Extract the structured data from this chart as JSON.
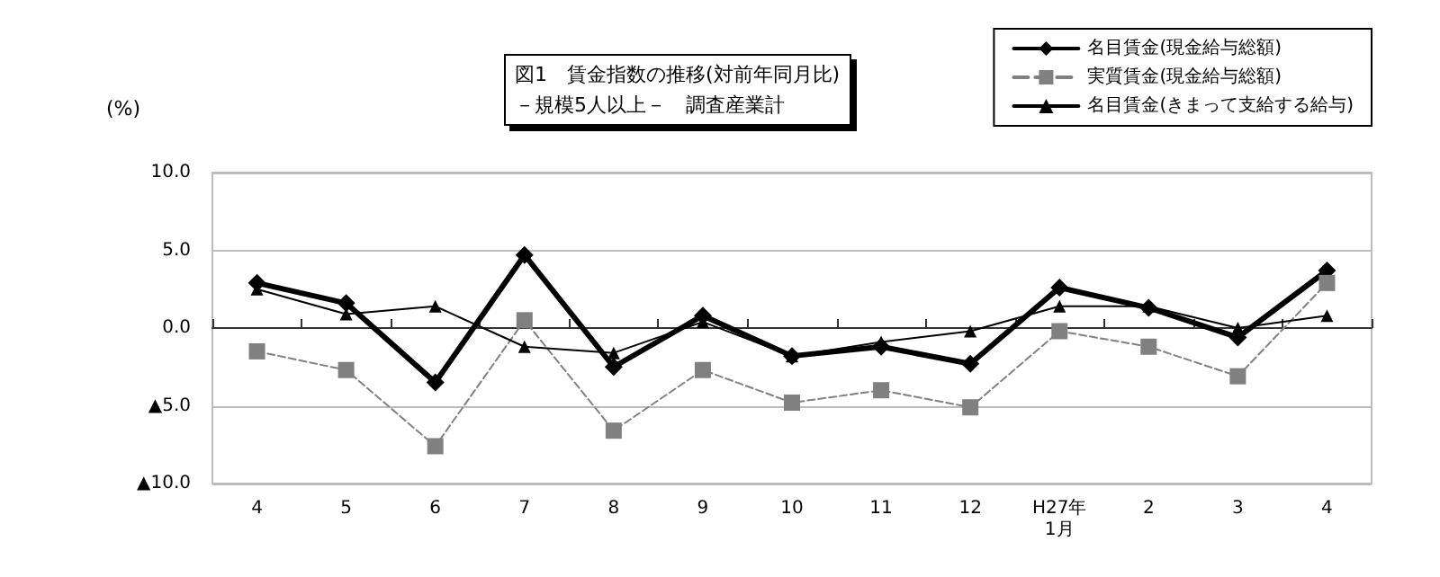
{
  "chart_data": {
    "type": "line",
    "title": "図1　賃金指数の推移(対前年同月比)\n－規模5人以上－　調査産業計",
    "ylabel": "(%)",
    "categories": [
      "4",
      "5",
      "6",
      "7",
      "8",
      "9",
      "10",
      "11",
      "12",
      "H27年\n1月",
      "2",
      "3",
      "4"
    ],
    "series": [
      {
        "name": "名目賃金(現金給与総額)",
        "color": "#000000",
        "marker": "diamond",
        "line_style": "solid",
        "values": [
          2.9,
          1.6,
          -3.5,
          4.7,
          -2.5,
          0.8,
          -1.8,
          -1.2,
          -2.3,
          2.6,
          1.3,
          -0.6,
          3.7
        ]
      },
      {
        "name": "実質賃金(現金給与総額)",
        "color": "#808080",
        "marker": "square",
        "line_style": "dashed",
        "values": [
          -1.5,
          -2.7,
          -7.6,
          0.5,
          -6.6,
          -2.7,
          -4.8,
          -4.0,
          -5.1,
          -0.2,
          -1.2,
          -3.1,
          2.9
        ]
      },
      {
        "name": "名目賃金(きまって支給する給与)",
        "color": "#000000",
        "marker": "triangle",
        "line_style": "solid",
        "values": [
          2.5,
          0.9,
          1.4,
          -1.2,
          -1.6,
          0.4,
          -1.8,
          -0.9,
          -0.2,
          1.4,
          1.4,
          0.0,
          0.8
        ]
      }
    ],
    "ylim": [
      -10,
      10
    ],
    "yticks": [
      {
        "value": -10,
        "label": "▲10.0"
      },
      {
        "value": -5,
        "label": "▲5.0"
      },
      {
        "value": 0,
        "label": "0.0"
      },
      {
        "value": 5,
        "label": "5.0"
      },
      {
        "value": 10,
        "label": "10.0"
      }
    ],
    "grid": "y",
    "legend": "top right"
  }
}
